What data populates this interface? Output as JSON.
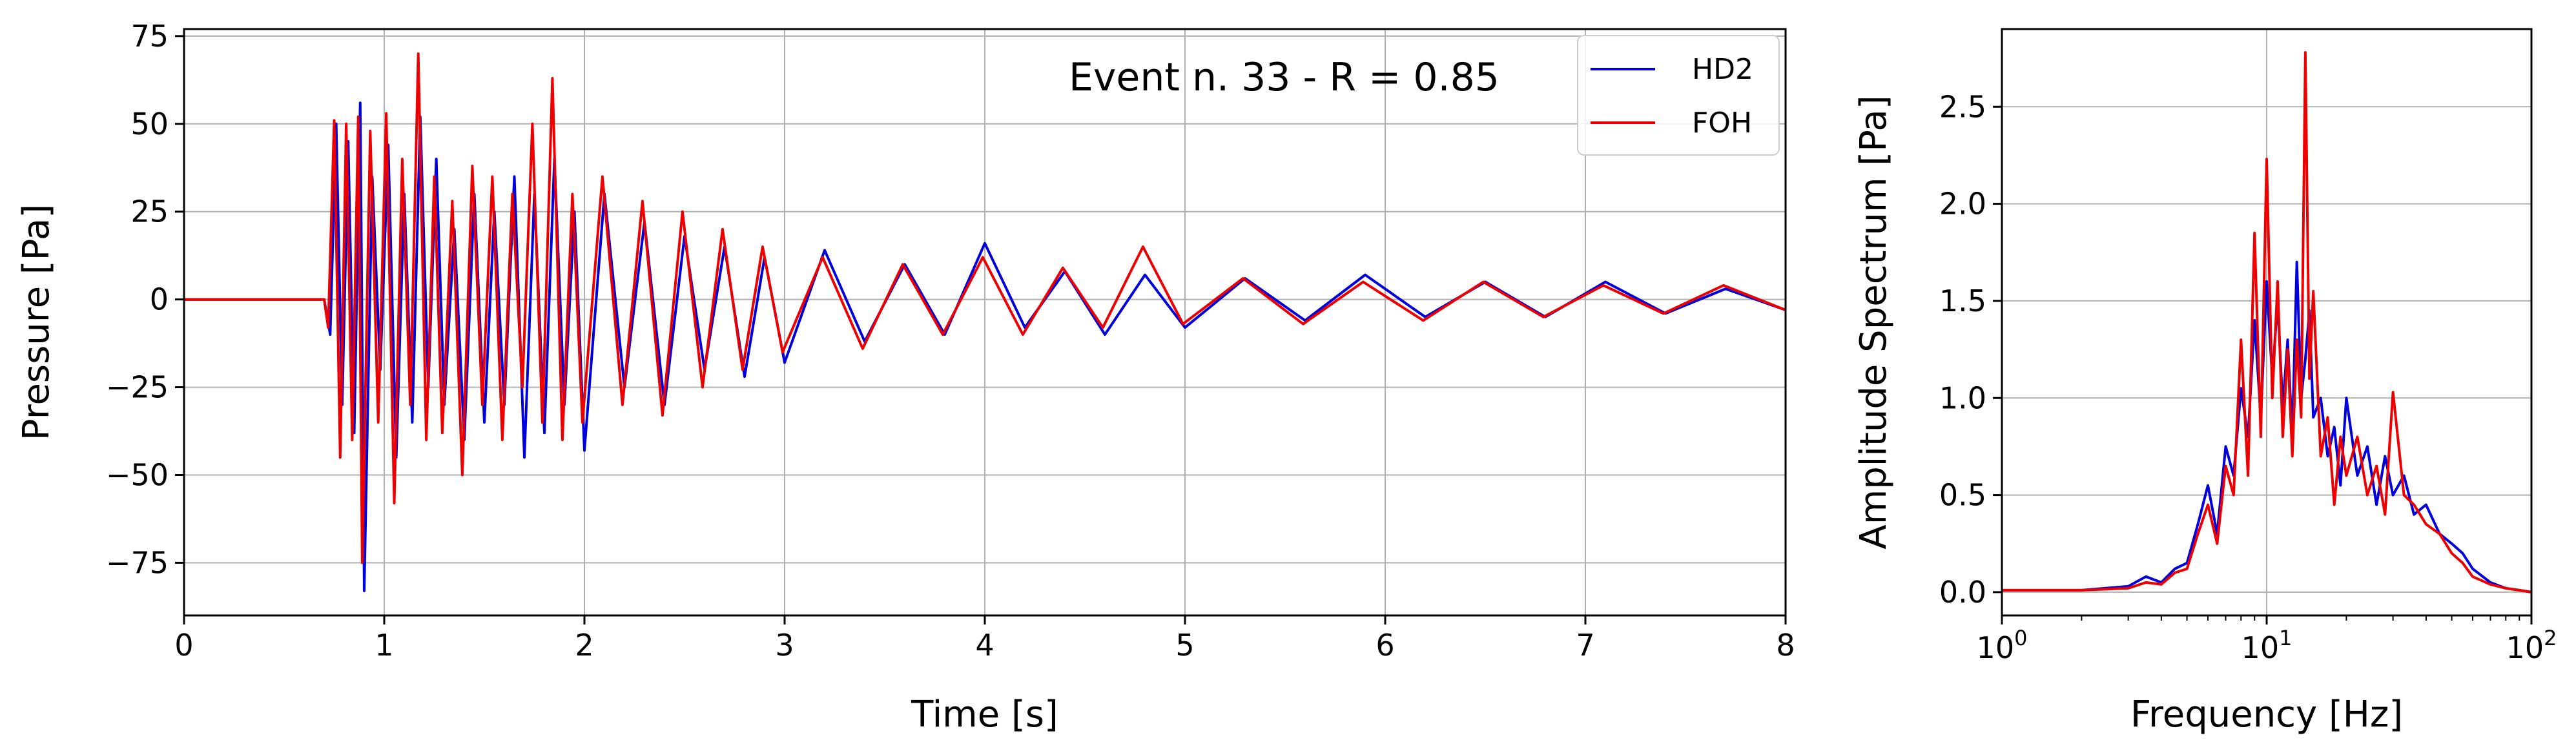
{
  "chart_data": [
    {
      "type": "line",
      "xlabel": "Time [s]",
      "ylabel": "Pressure [Pa]",
      "xlim": [
        0,
        8
      ],
      "ylim": [
        -90,
        77
      ],
      "x_ticks": [
        0,
        1,
        2,
        3,
        4,
        5,
        6,
        7,
        8
      ],
      "x_tick_labels": [
        "0",
        "1",
        "2",
        "3",
        "4",
        "5",
        "6",
        "7",
        "8"
      ],
      "y_ticks": [
        -75,
        -50,
        -25,
        0,
        25,
        50,
        75
      ],
      "y_tick_labels": [
        "−75",
        "−50",
        "−25",
        "0",
        "25",
        "50",
        "75"
      ],
      "grid": true,
      "annotation": "Event n. 33 - R = 0.85",
      "legend": {
        "placement": "top-right",
        "entries": [
          "HD2",
          "FOH"
        ]
      },
      "series": [
        {
          "name": "HD2",
          "color": "#0000dd",
          "x": [
            0,
            0.5,
            0.7,
            0.73,
            0.76,
            0.79,
            0.82,
            0.85,
            0.88,
            0.9,
            0.94,
            0.98,
            1.02,
            1.06,
            1.1,
            1.14,
            1.18,
            1.22,
            1.26,
            1.3,
            1.35,
            1.4,
            1.45,
            1.5,
            1.55,
            1.6,
            1.65,
            1.7,
            1.75,
            1.8,
            1.85,
            1.9,
            1.95,
            2.0,
            2.1,
            2.2,
            2.3,
            2.4,
            2.5,
            2.6,
            2.7,
            2.8,
            2.9,
            3.0,
            3.2,
            3.4,
            3.6,
            3.8,
            4.0,
            4.2,
            4.4,
            4.6,
            4.8,
            5.0,
            5.3,
            5.6,
            5.9,
            6.2,
            6.5,
            6.8,
            7.1,
            7.4,
            7.7,
            8.0
          ],
          "values": [
            0,
            0,
            0,
            -10,
            50,
            -30,
            45,
            -38,
            56,
            -83,
            35,
            -20,
            44,
            -45,
            30,
            -35,
            52,
            -25,
            40,
            -30,
            20,
            -40,
            30,
            -35,
            25,
            -30,
            35,
            -45,
            30,
            -38,
            40,
            -30,
            25,
            -43,
            30,
            -25,
            22,
            -30,
            18,
            -20,
            15,
            -22,
            12,
            -18,
            14,
            -12,
            10,
            -10,
            16,
            -8,
            8,
            -10,
            7,
            -8,
            6,
            -6,
            7,
            -5,
            5,
            -5,
            5,
            -4,
            3,
            -3
          ]
        },
        {
          "name": "FOH",
          "color": "#ee0000",
          "x": [
            0,
            0.5,
            0.7,
            0.72,
            0.75,
            0.78,
            0.81,
            0.84,
            0.87,
            0.89,
            0.93,
            0.97,
            1.01,
            1.05,
            1.09,
            1.13,
            1.17,
            1.21,
            1.25,
            1.29,
            1.34,
            1.39,
            1.44,
            1.49,
            1.54,
            1.59,
            1.64,
            1.69,
            1.74,
            1.79,
            1.84,
            1.89,
            1.94,
            1.99,
            2.09,
            2.19,
            2.29,
            2.39,
            2.49,
            2.59,
            2.69,
            2.79,
            2.89,
            2.99,
            3.19,
            3.39,
            3.59,
            3.79,
            3.99,
            4.19,
            4.39,
            4.59,
            4.79,
            4.99,
            5.29,
            5.59,
            5.89,
            6.19,
            6.49,
            6.79,
            7.09,
            7.39,
            7.69,
            8.0
          ],
          "values": [
            0,
            0,
            0,
            -8,
            51,
            -45,
            50,
            -40,
            52,
            -75,
            48,
            -35,
            53,
            -58,
            40,
            -30,
            70,
            -40,
            35,
            -38,
            28,
            -50,
            38,
            -30,
            35,
            -40,
            30,
            -25,
            50,
            -35,
            63,
            -40,
            30,
            -35,
            35,
            -30,
            28,
            -33,
            25,
            -25,
            20,
            -20,
            15,
            -15,
            12,
            -14,
            10,
            -10,
            12,
            -10,
            9,
            -8,
            15,
            -7,
            6,
            -7,
            5,
            -6,
            5,
            -5,
            4,
            -4,
            4,
            -3
          ]
        }
      ]
    },
    {
      "type": "line",
      "xlabel": "Frequency [Hz]",
      "ylabel": "Amplitude Spectrum [Pa]",
      "x_scale": "log",
      "xlim": [
        1,
        100
      ],
      "ylim": [
        -0.12,
        2.9
      ],
      "x_ticks": [
        1,
        10,
        100
      ],
      "x_tick_labels": [
        "0",
        "1",
        "2"
      ],
      "x_tick_base": "10",
      "y_ticks": [
        0.0,
        0.5,
        1.0,
        1.5,
        2.0,
        2.5
      ],
      "y_tick_labels": [
        "0.0",
        "0.5",
        "1.0",
        "1.5",
        "2.0",
        "2.5"
      ],
      "grid": true,
      "series": [
        {
          "name": "HD2",
          "color": "#0000dd",
          "x": [
            1,
            2,
            3,
            3.5,
            4,
            4.5,
            5,
            5.5,
            6,
            6.5,
            7,
            7.5,
            8,
            8.5,
            9,
            9.5,
            10,
            10.5,
            11,
            11.5,
            12,
            12.5,
            13,
            13.5,
            14,
            14.5,
            15,
            16,
            17,
            18,
            19,
            20,
            22,
            24,
            26,
            28,
            30,
            33,
            36,
            40,
            45,
            50,
            55,
            60,
            70,
            80,
            90,
            100
          ],
          "values": [
            0.01,
            0.01,
            0.03,
            0.08,
            0.05,
            0.12,
            0.15,
            0.35,
            0.55,
            0.3,
            0.75,
            0.6,
            1.05,
            0.8,
            1.4,
            0.9,
            1.6,
            1.1,
            1.5,
            0.95,
            1.3,
            0.8,
            1.7,
            1.0,
            1.2,
            1.45,
            0.9,
            1.0,
            0.7,
            0.85,
            0.55,
            1.0,
            0.6,
            0.75,
            0.45,
            0.7,
            0.5,
            0.6,
            0.4,
            0.45,
            0.3,
            0.25,
            0.2,
            0.12,
            0.05,
            0.02,
            0.01,
            0.0
          ]
        },
        {
          "name": "FOH",
          "color": "#ee0000",
          "x": [
            1,
            2,
            3,
            3.5,
            4,
            4.5,
            5,
            5.5,
            6,
            6.5,
            7,
            7.5,
            8,
            8.5,
            9,
            9.5,
            10,
            10.5,
            11,
            11.5,
            12,
            12.5,
            13,
            13.5,
            14,
            14.5,
            15,
            16,
            17,
            18,
            19,
            20,
            22,
            24,
            26,
            28,
            30,
            33,
            36,
            40,
            45,
            50,
            55,
            60,
            70,
            80,
            90,
            100
          ],
          "values": [
            0.01,
            0.01,
            0.02,
            0.05,
            0.04,
            0.1,
            0.12,
            0.3,
            0.45,
            0.25,
            0.65,
            0.5,
            1.3,
            0.6,
            1.85,
            0.8,
            2.23,
            1.0,
            1.6,
            0.8,
            1.25,
            0.7,
            1.3,
            0.9,
            2.78,
            1.1,
            1.55,
            0.7,
            0.9,
            0.45,
            0.8,
            0.6,
            0.8,
            0.5,
            0.65,
            0.4,
            1.03,
            0.5,
            0.45,
            0.35,
            0.3,
            0.2,
            0.15,
            0.08,
            0.04,
            0.02,
            0.01,
            0.0
          ]
        }
      ]
    }
  ]
}
